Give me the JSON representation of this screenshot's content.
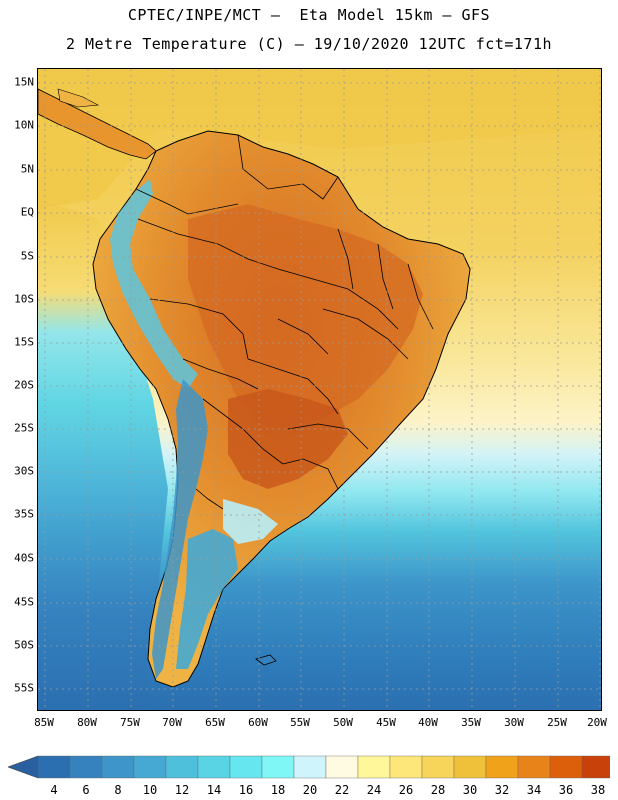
{
  "title": {
    "line1": "CPTEC/INPE/MCT –  Eta Model 15km – GFS",
    "line2": "2 Metre Temperature (C) – 19/10/2020 12UTC fct=171h"
  },
  "map": {
    "lat_labels": [
      "15N",
      "10N",
      "5N",
      "EQ",
      "5S",
      "10S",
      "15S",
      "20S",
      "25S",
      "30S",
      "35S",
      "40S",
      "45S",
      "50S",
      "55S"
    ],
    "lon_labels": [
      "85W",
      "80W",
      "75W",
      "70W",
      "65W",
      "60W",
      "55W",
      "50W",
      "45W",
      "40W",
      "35W",
      "30W",
      "25W",
      "20W"
    ]
  },
  "colorbar": {
    "labels": [
      "4",
      "6",
      "8",
      "10",
      "12",
      "14",
      "16",
      "18",
      "20",
      "22",
      "24",
      "26",
      "28",
      "30",
      "32",
      "34",
      "36",
      "38"
    ],
    "colors": [
      "#2b6fb0",
      "#3582bf",
      "#3d95c9",
      "#45a9d3",
      "#4ec0dc",
      "#58d4e5",
      "#66e6ef",
      "#7ff7f7",
      "#cff4fb",
      "#fffae2",
      "#fff79a",
      "#fde77a",
      "#f6d55a",
      "#efc13a",
      "#f0a21a",
      "#e8831a",
      "#dc5f0c",
      "#c8400a"
    ],
    "low_end_color": "#2a5fa0",
    "high_end_color": "#b83508"
  },
  "colors": {
    "ocean_north": "#f1c94a",
    "ocean_mid": "#fdf3c8",
    "ocean_south": "#2b6fb0",
    "land_hot": "#d97025",
    "land_warm": "#e8952e",
    "andes": "#5cc6e0"
  }
}
